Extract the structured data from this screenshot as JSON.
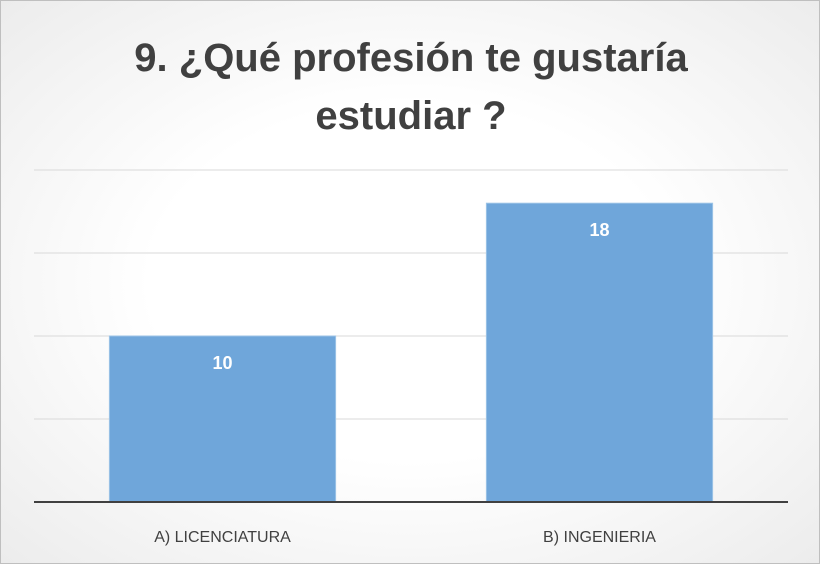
{
  "chart_data": {
    "type": "bar",
    "title": "9. ¿Qué profesión te gustaría estudiar ?",
    "categories": [
      "A) LICENCIATURA",
      "B) INGENIERIA"
    ],
    "values": [
      10,
      18
    ],
    "color": "#6fa6da",
    "ylim": [
      0,
      20
    ],
    "yticks": [
      0,
      5,
      10,
      15,
      20
    ],
    "grid": true
  }
}
